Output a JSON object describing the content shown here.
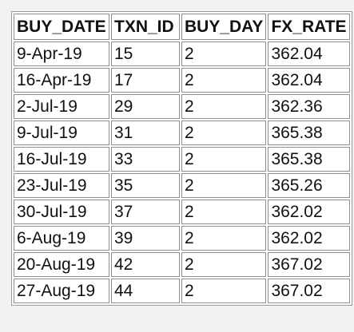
{
  "table": {
    "headers": [
      "BUY_DATE",
      "TXN_ID",
      "BUY_DAY",
      "FX_RATE"
    ],
    "rows": [
      [
        "9-Apr-19",
        "15",
        "2",
        "362.04"
      ],
      [
        "16-Apr-19",
        "17",
        "2",
        "362.04"
      ],
      [
        "2-Jul-19",
        "29",
        "2",
        "362.36"
      ],
      [
        "9-Jul-19",
        "31",
        "2",
        "365.38"
      ],
      [
        "16-Jul-19",
        "33",
        "2",
        "365.38"
      ],
      [
        "23-Jul-19",
        "35",
        "2",
        "365.26"
      ],
      [
        "30-Jul-19",
        "37",
        "2",
        "362.02"
      ],
      [
        "6-Aug-19",
        "39",
        "2",
        "362.02"
      ],
      [
        "20-Aug-19",
        "42",
        "2",
        "367.02"
      ],
      [
        "27-Aug-19",
        "44",
        "2",
        "367.02"
      ]
    ]
  }
}
